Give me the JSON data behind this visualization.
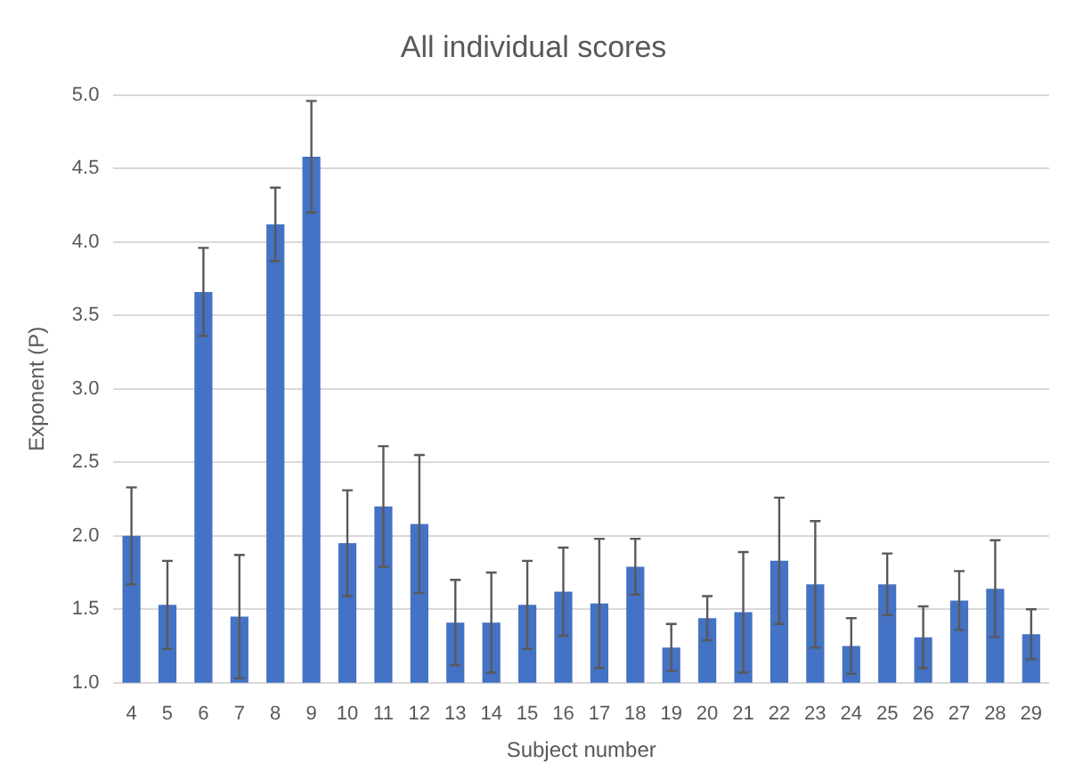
{
  "chart_data": {
    "type": "bar",
    "title": "All individual scores",
    "xlabel": "Subject number",
    "ylabel": "Exponent (P)",
    "categories": [
      "4",
      "5",
      "6",
      "7",
      "8",
      "9",
      "10",
      "11",
      "12",
      "13",
      "14",
      "15",
      "16",
      "17",
      "18",
      "19",
      "20",
      "21",
      "22",
      "23",
      "24",
      "25",
      "26",
      "27",
      "28",
      "29"
    ],
    "values": [
      2.0,
      1.53,
      3.66,
      1.45,
      4.12,
      4.58,
      1.95,
      2.2,
      2.08,
      1.41,
      1.41,
      1.53,
      1.62,
      1.54,
      1.79,
      1.24,
      1.44,
      1.48,
      1.83,
      1.67,
      1.25,
      1.67,
      1.31,
      1.56,
      1.64,
      1.33
    ],
    "errors": [
      0.33,
      0.3,
      0.3,
      0.42,
      0.25,
      0.38,
      0.36,
      0.41,
      0.47,
      0.29,
      0.34,
      0.3,
      0.3,
      0.44,
      0.19,
      0.16,
      0.15,
      0.41,
      0.43,
      0.43,
      0.19,
      0.21,
      0.21,
      0.2,
      0.33,
      0.17
    ],
    "color": "#4472c4",
    "ylim": [
      1,
      5
    ],
    "yticks": [
      {
        "value": 1,
        "label": "1.0"
      },
      {
        "value": 1.5,
        "label": "1.5"
      },
      {
        "value": 2,
        "label": "2.0"
      },
      {
        "value": 2.5,
        "label": "2.5"
      },
      {
        "value": 3,
        "label": "3.0"
      },
      {
        "value": 3.5,
        "label": "3.5"
      },
      {
        "value": 4,
        "label": "4.0"
      },
      {
        "value": 4.5,
        "label": "4.5"
      },
      {
        "value": 5,
        "label": "5.0"
      }
    ],
    "grid": "y"
  }
}
